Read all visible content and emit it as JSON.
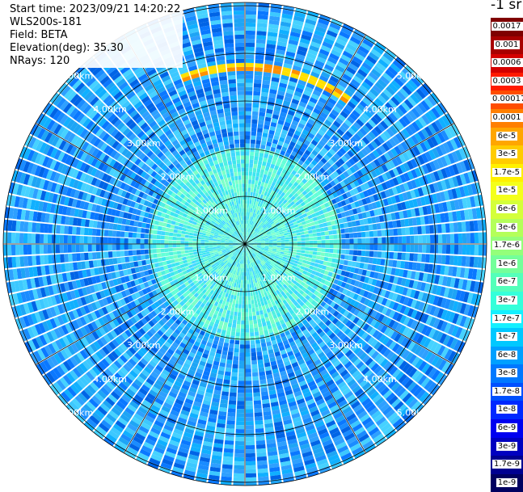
{
  "header": {
    "start_time": "Start time: 2023/09/21 14:20:22",
    "instrument": "WLS200s-181",
    "field": "Field: BETA",
    "elevation": "Elevation(deg): 35.30",
    "nrays": "NRays: 120"
  },
  "colorbar": {
    "unit_label": "-1 sr",
    "labels": [
      "0.0017",
      "0.001",
      "0.0006",
      "0.0003",
      "0.00017",
      "0.0001",
      "6e-5",
      "3e-5",
      "1.7e-5",
      "1e-5",
      "6e-6",
      "3e-6",
      "1.7e-6",
      "1e-6",
      "6e-7",
      "3e-7",
      "1.7e-7",
      "1e-7",
      "6e-8",
      "3e-8",
      "1.7e-8",
      "1e-8",
      "6e-9",
      "3e-9",
      "1.7e-9",
      "1e-9"
    ],
    "colors": [
      "#7f0000",
      "#a80000",
      "#d40000",
      "#ff1a00",
      "#ff4d00",
      "#ff7f00",
      "#ffa600",
      "#ffcc00",
      "#fff000",
      "#f4ff1a",
      "#d4ff3a",
      "#b4ff5a",
      "#94ff7a",
      "#74ff9a",
      "#54ffba",
      "#34ffda",
      "#14f0ff",
      "#00c8ff",
      "#00a0ff",
      "#0078ff",
      "#0050ff",
      "#0028ff",
      "#0000f0",
      "#0000c0",
      "#000090",
      "#000060"
    ]
  },
  "ppi": {
    "range_rings_km": [
      1,
      2,
      3,
      4,
      5
    ],
    "ring_labels": [
      "1.00km",
      "2.00km",
      "3.00km",
      "4.00km",
      "5.00km"
    ],
    "nrays": 120
  }
}
